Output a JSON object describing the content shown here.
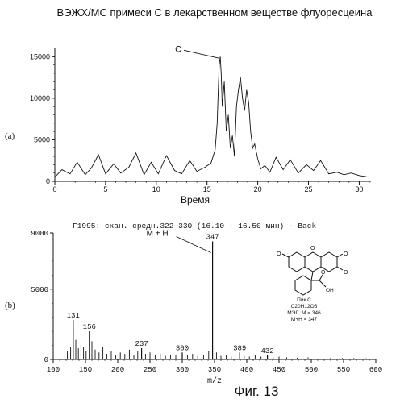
{
  "figure": {
    "title": "ВЭЖХ/МС примеси С в лекарственном веществе флуоресцеина",
    "caption": "Фиг. 13"
  },
  "structure": {
    "peak_name": "Пик С",
    "formula": "C20H12O6",
    "mol_mass": "МЭЛ. М = 346",
    "mh": "М+Н = 347",
    "oh_label": "OH"
  },
  "chart_data": [
    {
      "type": "line",
      "panel_label": "(a)",
      "xlabel": "Время",
      "ylabel": "",
      "xlim": [
        0,
        31
      ],
      "ylim": [
        0,
        16000
      ],
      "xticks": [
        0,
        5,
        10,
        15,
        20,
        25,
        30
      ],
      "xtick_labels": [
        "0",
        "5",
        "10",
        "15",
        "20",
        "25",
        "30"
      ],
      "yticks": [
        0,
        5000,
        10000,
        15000
      ],
      "ytick_labels": [
        "0",
        "5000",
        "10000",
        "15000"
      ],
      "grid": false,
      "annotation": {
        "label": "C",
        "x": 16.3,
        "y": 15000
      },
      "x": [
        0,
        0.7,
        1.5,
        2.2,
        3,
        3.6,
        4.3,
        5,
        5.8,
        6.5,
        7.3,
        8,
        8.8,
        9.5,
        10.2,
        11,
        11.8,
        12.5,
        13.3,
        14,
        14.8,
        15.4,
        15.8,
        16,
        16.1,
        16.2,
        16.3,
        16.4,
        16.5,
        16.7,
        16.9,
        17.1,
        17.3,
        17.5,
        17.7,
        17.9,
        18.1,
        18.3,
        18.5,
        18.7,
        18.9,
        19.1,
        19.3,
        19.5,
        19.7,
        20,
        20.3,
        20.7,
        21.2,
        21.8,
        22.5,
        23.2,
        24,
        24.8,
        25.5,
        26.2,
        27,
        27.8,
        28.5,
        29.2,
        30,
        31
      ],
      "y": [
        500,
        1400,
        900,
        2300,
        800,
        1600,
        3200,
        900,
        2100,
        1000,
        1700,
        3400,
        800,
        2300,
        900,
        3100,
        1300,
        900,
        2500,
        1200,
        1700,
        2200,
        3800,
        7000,
        10500,
        14000,
        15000,
        13000,
        9000,
        12000,
        6000,
        8000,
        4000,
        5500,
        3000,
        9000,
        11000,
        12500,
        10000,
        8500,
        11000,
        9500,
        6000,
        4000,
        4500,
        2700,
        1500,
        1900,
        1100,
        2900,
        1400,
        2600,
        1000,
        2000,
        1300,
        2500,
        900,
        1100,
        800,
        1000,
        700,
        500
      ]
    },
    {
      "type": "bar",
      "panel_label": "(b)",
      "title": "F1995: скан. средн.322-330 (16.10 - 16.50 мин) - Back",
      "xlabel": "m/z",
      "ylabel": "",
      "xlim": [
        100,
        600
      ],
      "ylim": [
        0,
        9000
      ],
      "xticks": [
        100,
        150,
        200,
        250,
        300,
        350,
        400,
        450,
        500,
        550,
        600
      ],
      "xtick_labels": [
        "100",
        "150",
        "200",
        "250",
        "300",
        "350",
        "400",
        "450",
        "500",
        "550",
        "600"
      ],
      "yticks": [
        0,
        5000,
        9000
      ],
      "ytick_labels": [
        "0",
        "5000",
        "9000"
      ],
      "grid": false,
      "main_annotation": {
        "label": "M + H",
        "x": 347,
        "y": 8400
      },
      "peaks": [
        {
          "x": 131,
          "y": 2800,
          "label": "131"
        },
        {
          "x": 156,
          "y": 2000,
          "label": "156"
        },
        {
          "x": 237,
          "y": 800,
          "label": "237"
        },
        {
          "x": 300,
          "y": 500,
          "label": "300"
        },
        {
          "x": 347,
          "y": 8400,
          "label": "347"
        },
        {
          "x": 389,
          "y": 500,
          "label": "389"
        },
        {
          "x": 432,
          "y": 300,
          "label": "432"
        }
      ],
      "minor_peaks_x": [
        118,
        122,
        127,
        135,
        139,
        143,
        147,
        151,
        160,
        165,
        171,
        177,
        183,
        190,
        197,
        204,
        211,
        218,
        225,
        231,
        243,
        250,
        258,
        266,
        274,
        282,
        290,
        308,
        316,
        324,
        333,
        341,
        353,
        360,
        368,
        376,
        382,
        396,
        404,
        413,
        422,
        441,
        450,
        462,
        478,
        495,
        512,
        530,
        548,
        566,
        585
      ],
      "minor_peaks_y": [
        300,
        600,
        900,
        1400,
        800,
        1200,
        900,
        600,
        1300,
        700,
        500,
        900,
        400,
        600,
        300,
        500,
        400,
        700,
        300,
        600,
        400,
        500,
        300,
        400,
        250,
        350,
        300,
        300,
        400,
        250,
        300,
        600,
        500,
        250,
        300,
        200,
        300,
        250,
        200,
        300,
        200,
        150,
        200,
        150,
        120,
        150,
        100,
        120,
        100,
        100,
        80
      ]
    }
  ]
}
